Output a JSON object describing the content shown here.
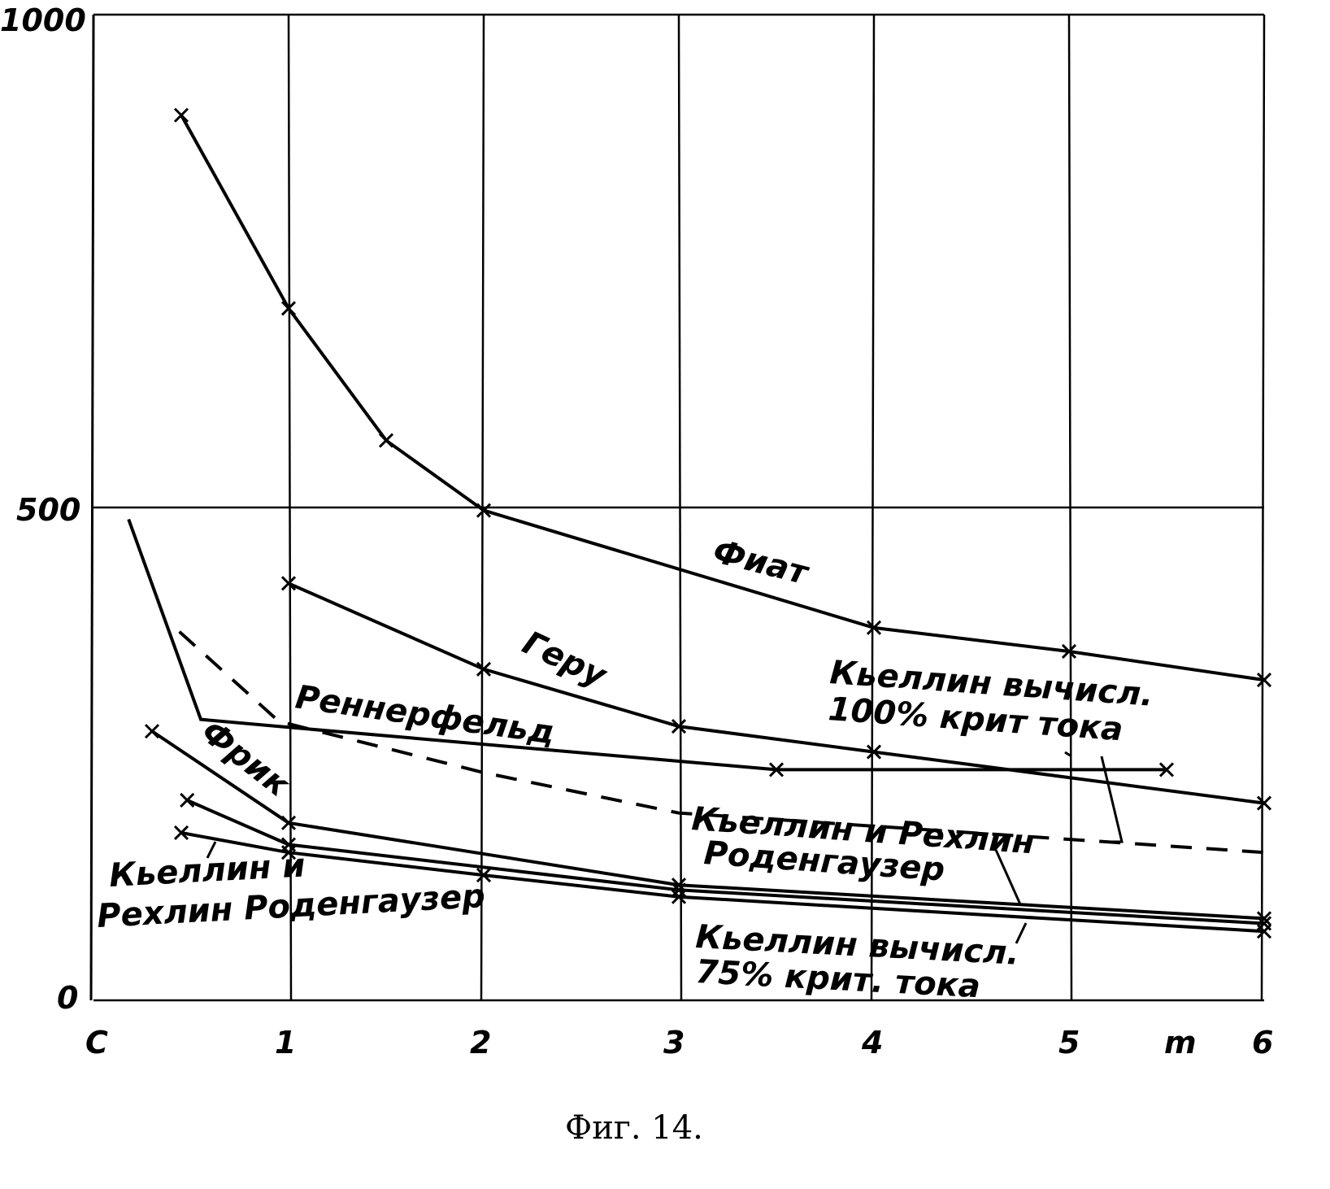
{
  "chart_data": {
    "type": "line",
    "title": "",
    "caption": "Фиг. 14.",
    "xlabel": "m",
    "ylabel": "",
    "xlim": [
      0,
      6
    ],
    "ylim": [
      0,
      1000
    ],
    "grid": true,
    "x_tick_labels": [
      "C",
      "1",
      "2",
      "3",
      "4",
      "5",
      "6"
    ],
    "y_tick_labels": [
      "0",
      "500",
      "1000"
    ],
    "y_ticks": [
      0,
      500,
      1000
    ],
    "series": [
      {
        "name": "Фиат",
        "style": "solid",
        "markers": true,
        "points": [
          [
            0.45,
            898
          ],
          [
            1,
            702
          ],
          [
            1.5,
            568
          ],
          [
            2,
            497
          ],
          [
            4,
            378
          ],
          [
            5,
            354
          ],
          [
            6,
            325
          ]
        ]
      },
      {
        "name": "Геру",
        "style": "solid",
        "markers": true,
        "points": [
          [
            1,
            423
          ],
          [
            2,
            336
          ],
          [
            3,
            278
          ],
          [
            4,
            252
          ],
          [
            6,
            200
          ]
        ]
      },
      {
        "name": "Реннерфельд",
        "style": "solid",
        "markers": false,
        "points": [
          [
            0.18,
            488
          ],
          [
            0.55,
            285
          ],
          [
            1,
            277
          ],
          [
            3.5,
            234
          ]
        ]
      },
      {
        "name": "Кьеллин вычисл. 100% крит тока",
        "style": "solid",
        "markers": true,
        "points": [
          [
            3.5,
            234
          ],
          [
            5.5,
            234
          ]
        ]
      },
      {
        "name": "Кьеллин и Рехлин Роденгаузер (пунктир)",
        "style": "dashed",
        "markers": false,
        "points": [
          [
            0.44,
            374
          ],
          [
            0.95,
            283
          ],
          [
            2,
            231
          ],
          [
            3,
            190
          ],
          [
            6,
            150
          ]
        ]
      },
      {
        "name": "Фрик",
        "style": "solid",
        "markers": true,
        "points": [
          [
            0.3,
            273
          ],
          [
            1,
            180
          ],
          [
            3,
            117
          ],
          [
            6,
            83
          ]
        ]
      },
      {
        "name": "Кьеллин вычисл. 75% крит. тока",
        "style": "solid",
        "markers": true,
        "points": [
          [
            0.48,
            203
          ],
          [
            1,
            158
          ],
          [
            3,
            112
          ],
          [
            6,
            78
          ]
        ]
      },
      {
        "name": "Кьеллин и Рехлин Роденгаузер",
        "style": "solid",
        "markers": true,
        "points": [
          [
            0.45,
            170
          ],
          [
            1,
            150
          ],
          [
            2,
            127
          ],
          [
            3,
            105
          ],
          [
            6,
            70
          ]
        ]
      }
    ],
    "annotations": {
      "fiat": "Фиат",
      "geru": "Геру",
      "rennerfeld": "Реннерфельд",
      "frik": "Фрик",
      "kellin100_1": "Кьеллин вычисл.",
      "kellin100_2": "100% крит тока",
      "kr_dashed_1": "Кьеллин и Рехлин",
      "kr_dashed_2": "Роденгаузер",
      "kr_solid_1": "Кьеллин и",
      "kr_solid_2": "Рехлин Роденгаузер",
      "kellin75_1": "Кьеллин вычисл.",
      "kellin75_2": "75% крит. тока"
    }
  }
}
